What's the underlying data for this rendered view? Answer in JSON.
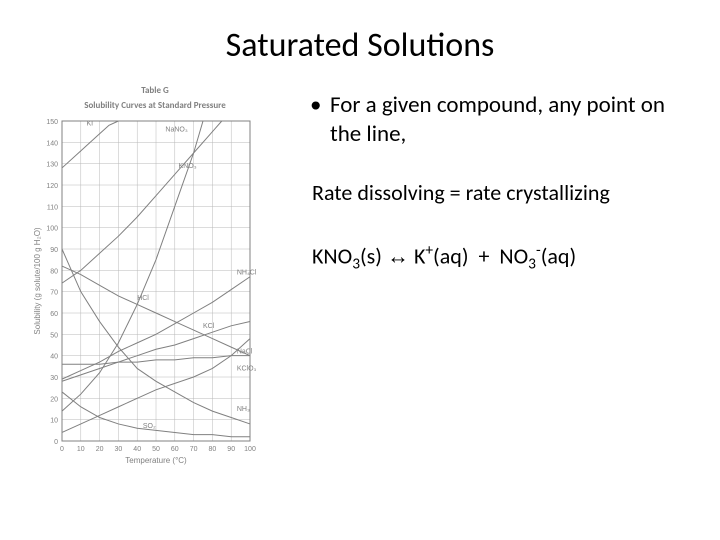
{
  "title": "Saturated Solutions",
  "bullet1": "For a given compound, any point on the line,",
  "rate_line": "Rate dissolving = rate crystallizing",
  "eq": {
    "lhs": "KNO",
    "lhs_sub": "3",
    "lhs_state": "(s)",
    "arrow": "↔",
    "rhs1": "K",
    "rhs1_sup": "+",
    "rhs1_state": "(aq)",
    "plus": "+",
    "rhs2": "NO",
    "rhs2_sub": "3",
    "rhs2_sup": "-",
    "rhs2_state": "(aq)"
  },
  "chart": {
    "type": "line",
    "table_label": "Table G",
    "title": "Solubility Curves at Standard Pressure",
    "xlabel": "Temperature (°C)",
    "ylabel": "Solubility (g solute/100 g H₂O)",
    "xlim": [
      0,
      100
    ],
    "ylim": [
      0,
      150
    ],
    "xtick_step": 10,
    "ytick_step": 10,
    "background_color": "#ffffff",
    "grid_color": "#b8b8b8",
    "axis_color": "#808080",
    "curve_color": "#808080",
    "curves": [
      {
        "label": "KI",
        "label_x": 13,
        "label_y": 148,
        "points": [
          [
            0,
            128
          ],
          [
            10,
            136
          ],
          [
            20,
            144
          ],
          [
            25,
            148
          ],
          [
            30,
            150
          ]
        ]
      },
      {
        "label": "NaNO₃",
        "label_x": 55,
        "label_y": 145,
        "points": [
          [
            0,
            74
          ],
          [
            10,
            80
          ],
          [
            20,
            88
          ],
          [
            30,
            96
          ],
          [
            40,
            105
          ],
          [
            50,
            115
          ],
          [
            60,
            125
          ],
          [
            70,
            135
          ],
          [
            80,
            145
          ],
          [
            85,
            150
          ]
        ]
      },
      {
        "label": "KNO₃",
        "label_x": 62,
        "label_y": 128,
        "points": [
          [
            0,
            14
          ],
          [
            10,
            22
          ],
          [
            20,
            32
          ],
          [
            30,
            46
          ],
          [
            40,
            64
          ],
          [
            50,
            85
          ],
          [
            60,
            110
          ],
          [
            70,
            135
          ],
          [
            75,
            150
          ]
        ]
      },
      {
        "label": "NH₄Cl",
        "label_x": 93,
        "label_y": 78,
        "points": [
          [
            0,
            29
          ],
          [
            10,
            33
          ],
          [
            20,
            37
          ],
          [
            30,
            42
          ],
          [
            40,
            46
          ],
          [
            50,
            50
          ],
          [
            60,
            55
          ],
          [
            70,
            60
          ],
          [
            80,
            65
          ],
          [
            90,
            71
          ],
          [
            100,
            77
          ]
        ]
      },
      {
        "label": "HCl",
        "label_x": 40,
        "label_y": 66,
        "points": [
          [
            0,
            82
          ],
          [
            10,
            78
          ],
          [
            20,
            73
          ],
          [
            30,
            68
          ],
          [
            40,
            64
          ],
          [
            50,
            60
          ],
          [
            60,
            56
          ],
          [
            70,
            52
          ],
          [
            80,
            48
          ],
          [
            90,
            44
          ],
          [
            100,
            40
          ]
        ]
      },
      {
        "label": "KCl",
        "label_x": 75,
        "label_y": 53,
        "points": [
          [
            0,
            28
          ],
          [
            10,
            31
          ],
          [
            20,
            34
          ],
          [
            30,
            37
          ],
          [
            40,
            40
          ],
          [
            50,
            43
          ],
          [
            60,
            45
          ],
          [
            70,
            48
          ],
          [
            80,
            51
          ],
          [
            90,
            54
          ],
          [
            100,
            56
          ]
        ]
      },
      {
        "label": "NaCl",
        "label_x": 93,
        "label_y": 41,
        "points": [
          [
            0,
            36
          ],
          [
            10,
            36
          ],
          [
            20,
            36
          ],
          [
            30,
            37
          ],
          [
            40,
            37
          ],
          [
            50,
            38
          ],
          [
            60,
            38
          ],
          [
            70,
            39
          ],
          [
            80,
            39
          ],
          [
            90,
            40
          ],
          [
            100,
            40
          ]
        ]
      },
      {
        "label": "KClO₃",
        "label_x": 93,
        "label_y": 33,
        "points": [
          [
            0,
            4
          ],
          [
            10,
            8
          ],
          [
            20,
            12
          ],
          [
            30,
            16
          ],
          [
            40,
            20
          ],
          [
            50,
            24
          ],
          [
            60,
            27
          ],
          [
            70,
            30
          ],
          [
            80,
            34
          ],
          [
            90,
            40
          ],
          [
            100,
            48
          ]
        ]
      },
      {
        "label": "NH₃",
        "label_x": 93,
        "label_y": 14,
        "points": [
          [
            0,
            90
          ],
          [
            10,
            70
          ],
          [
            20,
            56
          ],
          [
            30,
            44
          ],
          [
            40,
            34
          ],
          [
            50,
            28
          ],
          [
            60,
            23
          ],
          [
            70,
            18
          ],
          [
            80,
            14
          ],
          [
            90,
            11
          ],
          [
            100,
            8
          ]
        ]
      },
      {
        "label": "SO₂",
        "label_x": 43,
        "label_y": 6,
        "points": [
          [
            0,
            23
          ],
          [
            10,
            16
          ],
          [
            20,
            11
          ],
          [
            30,
            8
          ],
          [
            40,
            6
          ],
          [
            50,
            5
          ],
          [
            60,
            4
          ],
          [
            70,
            3
          ],
          [
            80,
            3
          ],
          [
            90,
            2
          ],
          [
            100,
            2
          ]
        ]
      }
    ]
  }
}
